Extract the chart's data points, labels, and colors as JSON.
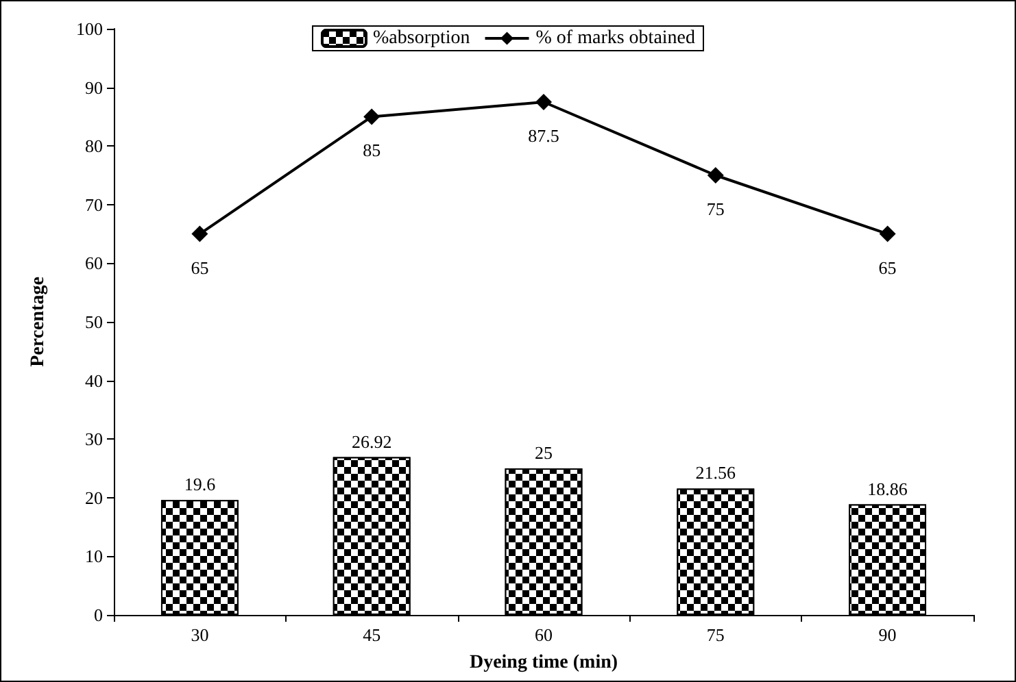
{
  "chart_data": {
    "type": "bar",
    "xlabel": "Dyeing time (min)",
    "ylabel": "Percentage",
    "categories": [
      "30",
      "45",
      "60",
      "75",
      "90"
    ],
    "series": [
      {
        "name": "%absorption",
        "color": "#000000",
        "values": [
          19.6,
          26.92,
          25,
          21.56,
          18.86
        ]
      },
      {
        "name": "% of marks obtained",
        "type": "line",
        "color": "#000000",
        "marker": "diamond",
        "values": [
          65,
          85,
          87.5,
          75,
          65
        ]
      }
    ],
    "ylim": [
      0,
      100
    ],
    "yticks": [
      0,
      10,
      20,
      30,
      40,
      50,
      60,
      70,
      80,
      90,
      100
    ],
    "data_labels": true,
    "legend": "top",
    "grid": false
  }
}
